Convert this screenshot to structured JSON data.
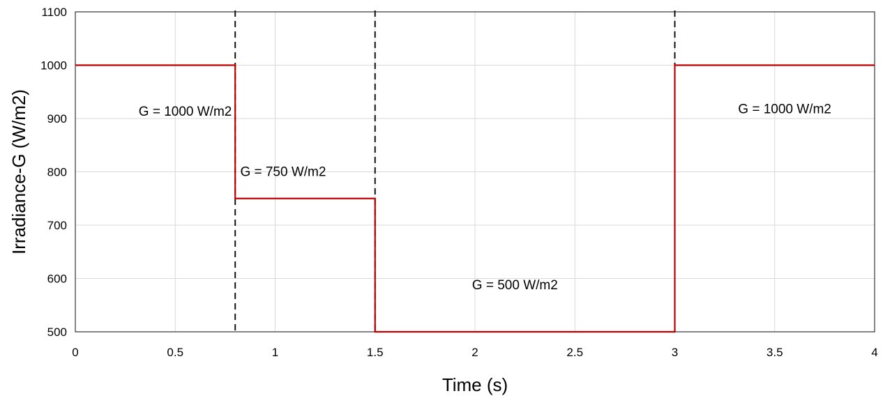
{
  "chart_data": {
    "type": "line",
    "title": "",
    "xlabel": "Time (s)",
    "ylabel": "Irradiance-G (W/m2)",
    "xlim": [
      0,
      4
    ],
    "ylim": [
      500,
      1100
    ],
    "grid": true,
    "x_ticks": [
      "0",
      "0.5",
      "1",
      "1.5",
      "2",
      "2.5",
      "3",
      "3.5",
      "4"
    ],
    "y_ticks": [
      "500",
      "600",
      "700",
      "800",
      "900",
      "1000",
      "1100"
    ],
    "series": [
      {
        "color": "#c00000",
        "x": [
          0,
          0.8,
          0.8,
          1.5,
          1.5,
          3,
          3,
          4
        ],
        "y": [
          1000,
          1000,
          750,
          750,
          500,
          500,
          1000,
          1000
        ]
      }
    ],
    "dashed_markers_x": [
      0.8,
      1.5,
      3
    ],
    "annotations": [
      {
        "text": "G = 1000 W/m2",
        "x": 0.55,
        "y": 905
      },
      {
        "text": "G = 750 W/m2",
        "x": 1.04,
        "y": 792
      },
      {
        "text": "G = 500 W/m2",
        "x": 2.2,
        "y": 580
      },
      {
        "text": "G = 1000 W/m2",
        "x": 3.55,
        "y": 910
      }
    ]
  }
}
